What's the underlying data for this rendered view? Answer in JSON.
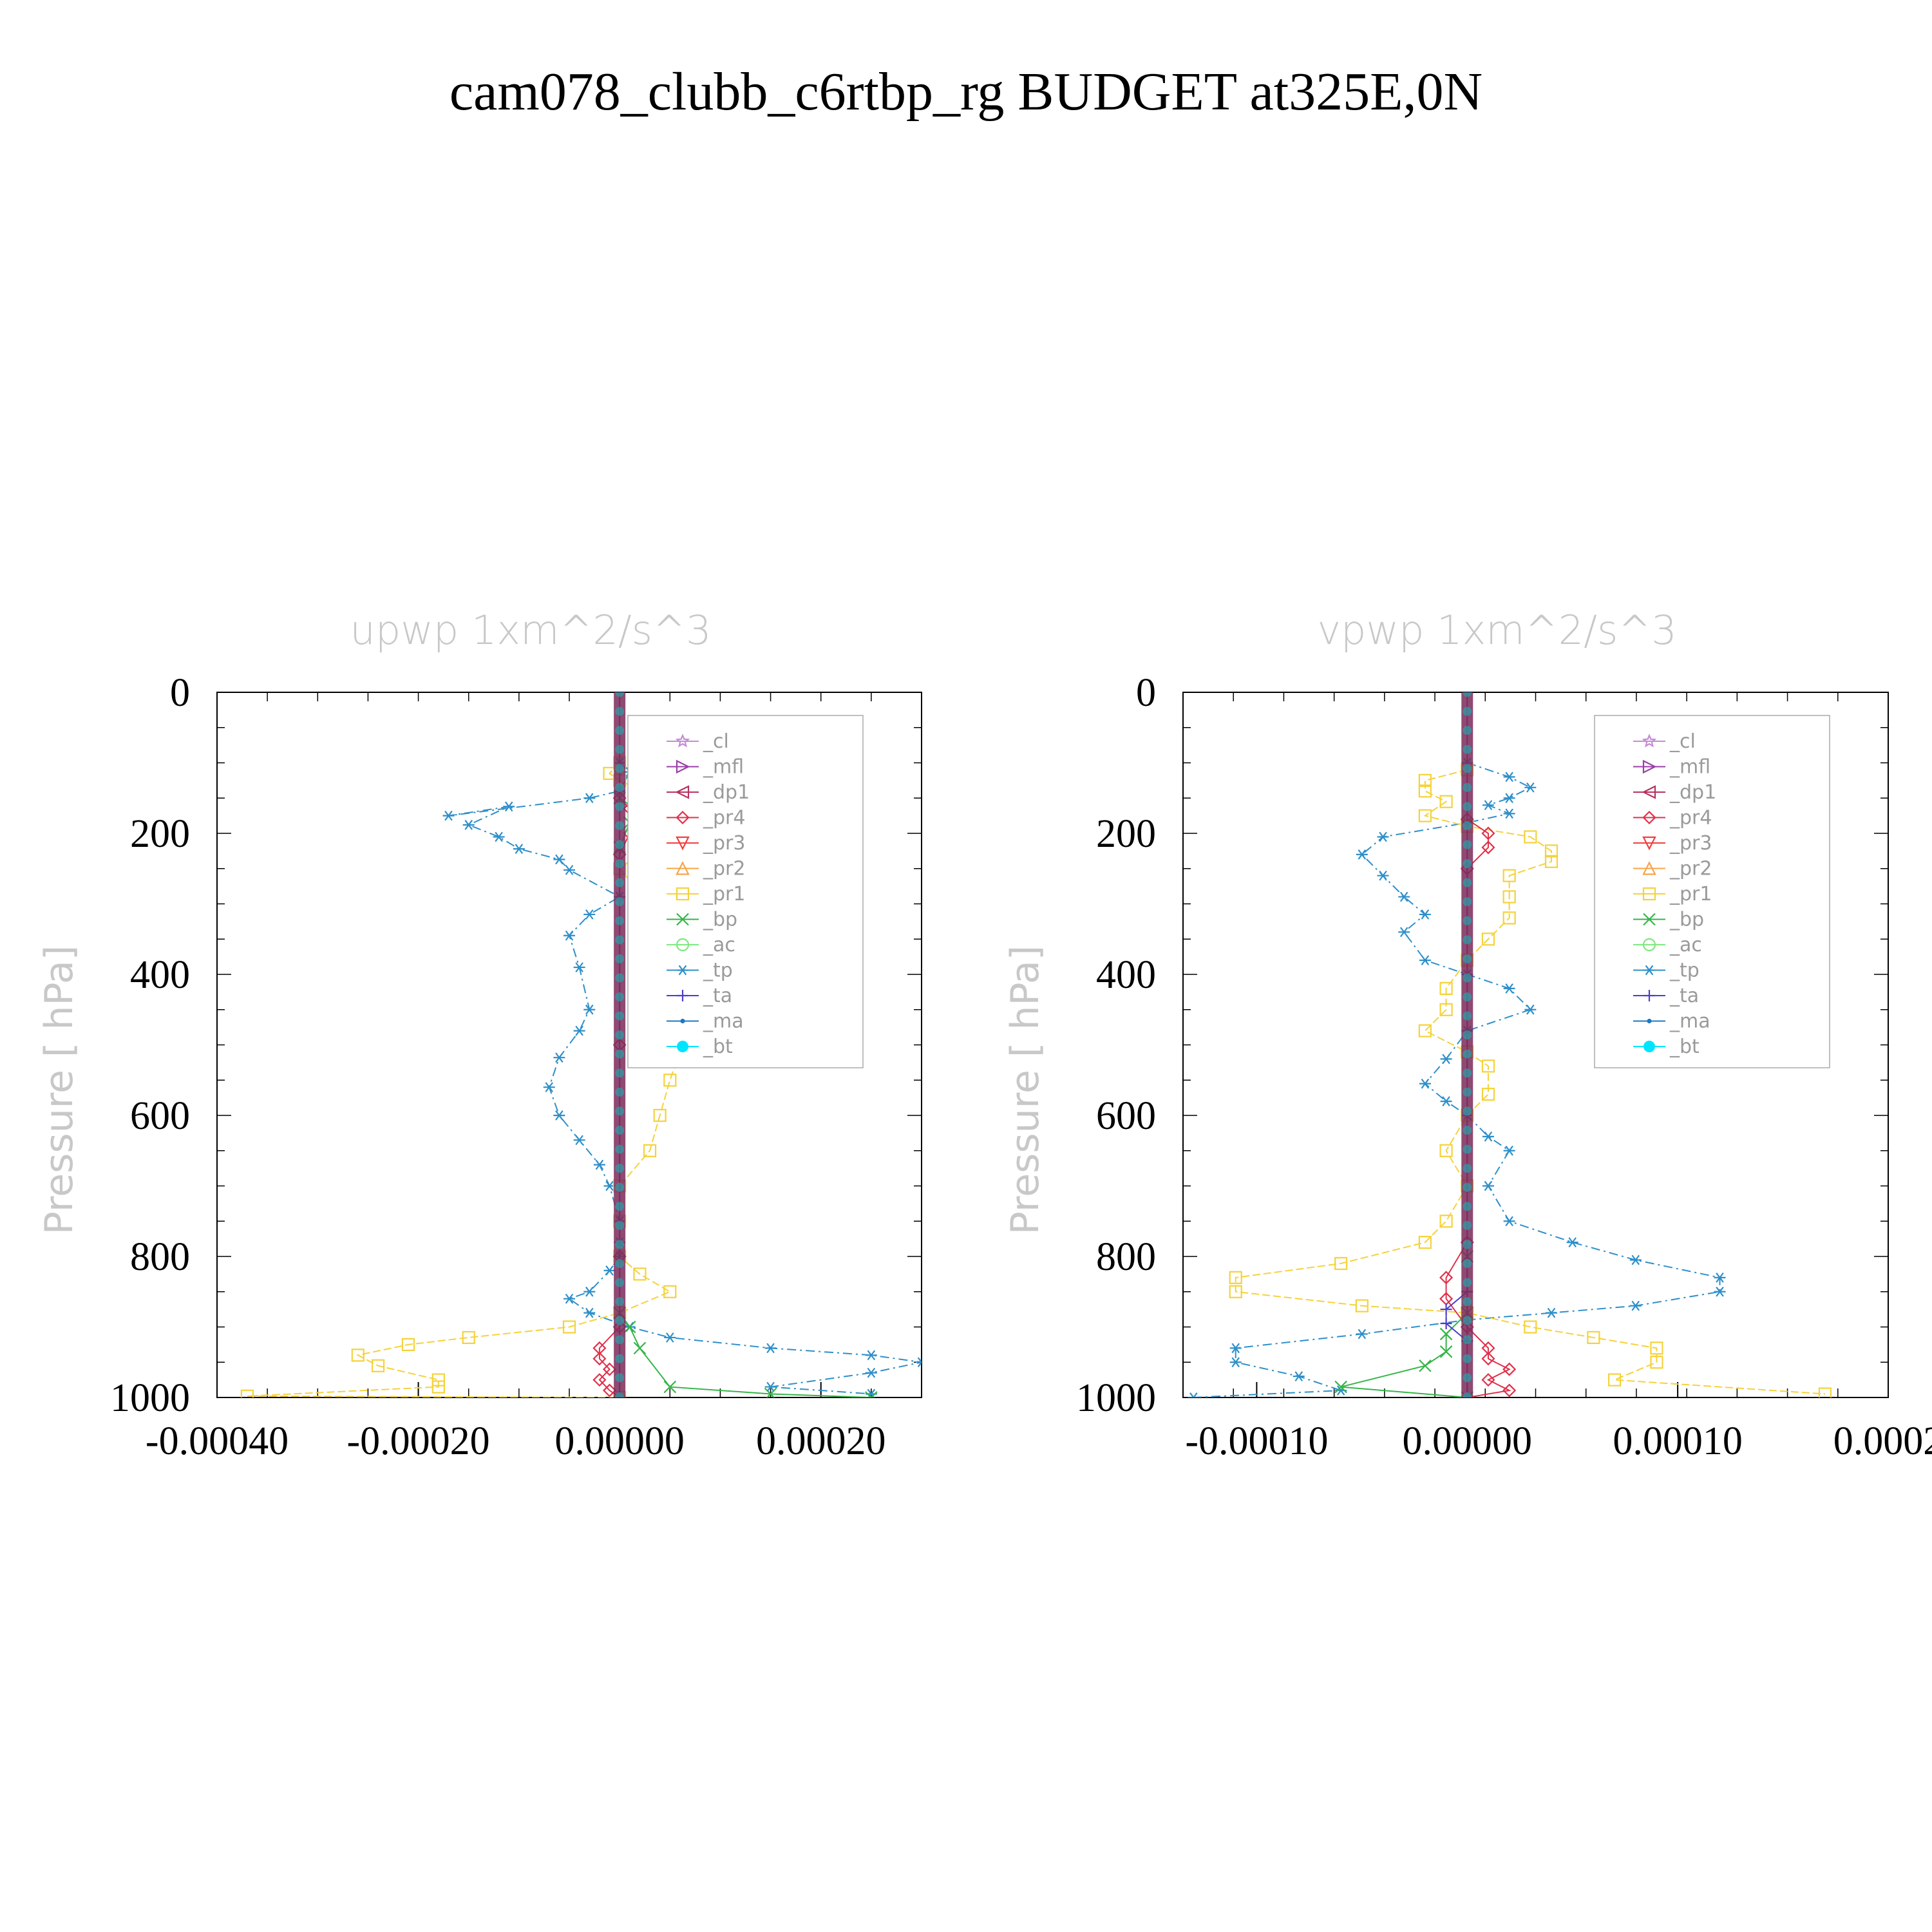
{
  "title": "cam078_clubb_c6rtbp_rg  BUDGET at325E,0N",
  "legend_items": [
    {
      "label": "_cl",
      "color": "#c58bd6",
      "marker": "star"
    },
    {
      "label": "_mfl",
      "color": "#9b3fa8",
      "marker": "tri-right"
    },
    {
      "label": "_dp1",
      "color": "#b8325f",
      "marker": "tri-left"
    },
    {
      "label": "_pr4",
      "color": "#e0304a",
      "marker": "diamond"
    },
    {
      "label": "_pr3",
      "color": "#f04040",
      "marker": "tri-down"
    },
    {
      "label": "_pr2",
      "color": "#f6a548",
      "marker": "tri-up"
    },
    {
      "label": "_pr1",
      "color": "#f5d23a",
      "marker": "square"
    },
    {
      "label": "_bp",
      "color": "#35b548",
      "marker": "x"
    },
    {
      "label": "_ac",
      "color": "#7ee87e",
      "marker": "circle"
    },
    {
      "label": "_tp",
      "color": "#2e8fc9",
      "marker": "asterisk"
    },
    {
      "label": "_ta",
      "color": "#4a3fc8",
      "marker": "plus"
    },
    {
      "label": "_ma",
      "color": "#1d78c0",
      "marker": "dot"
    },
    {
      "label": "_bt",
      "color": "#00e5ff",
      "marker": "filled-circle"
    }
  ],
  "chart_data": [
    {
      "type": "line",
      "title": "upwp   1xm^2/s^3",
      "ylabel": "Pressure  [ hPa]",
      "xlim": [
        -0.0004,
        0.0003
      ],
      "ylim": [
        0,
        1000
      ],
      "y_inverted": true,
      "x_ticks": [
        "-0.00040",
        "-0.00020",
        "0.00000",
        "0.00020"
      ],
      "x_tick_values": [
        -0.0004,
        -0.0002,
        0.0,
        0.0002
      ],
      "y_ticks": [
        "0",
        "200",
        "400",
        "600",
        "800",
        "1000"
      ],
      "y_tick_values": [
        0,
        200,
        400,
        600,
        800,
        1000
      ],
      "series": [
        {
          "name": "_tp",
          "x": [
            0.0,
            1e-05,
            0.0,
            -3e-05,
            -0.00017,
            -0.00011,
            -0.00015,
            -0.00012,
            -0.0001,
            -6e-05,
            -5e-05,
            0.0,
            -3e-05,
            -5e-05,
            -4e-05,
            -3e-05,
            -4e-05,
            -6e-05,
            -7e-05,
            -6e-05,
            -4e-05,
            -2e-05,
            -1e-05,
            0.0,
            0.0,
            0.0,
            -1e-05,
            -3e-05,
            -5e-05,
            -3e-05,
            1e-05,
            5e-05,
            0.00015,
            0.00025,
            0.0003,
            0.00025,
            0.00015,
            0.00025
          ],
          "y": [
            100,
            113,
            140,
            150,
            175,
            162,
            188,
            205,
            222,
            237,
            252,
            290,
            315,
            345,
            390,
            450,
            480,
            518,
            560,
            600,
            635,
            670,
            700,
            750,
            780,
            800,
            820,
            850,
            860,
            880,
            900,
            915,
            930,
            940,
            950,
            965,
            985,
            995
          ]
        },
        {
          "name": "_pr1",
          "x": [
            0.0,
            -1e-05,
            0.0,
            3e-05,
            8e-05,
            0.00012,
            5e-05,
            2e-05,
            0.0,
            3e-05,
            5e-05,
            4e-05,
            3e-05,
            3e-05,
            6e-05,
            5e-05,
            4e-05,
            3e-05,
            0.0,
            0.0,
            0.0,
            2e-05,
            5e-05,
            0.0,
            -5e-05,
            -0.00015,
            -0.00021,
            -0.00026,
            -0.00024,
            -0.00018,
            -0.00018,
            -0.00037,
            0.0
          ],
          "y": [
            100,
            115,
            125,
            145,
            160,
            175,
            205,
            230,
            250,
            300,
            350,
            400,
            450,
            480,
            510,
            550,
            600,
            650,
            700,
            750,
            800,
            825,
            850,
            880,
            900,
            915,
            925,
            940,
            955,
            975,
            985,
            998,
            1000
          ]
        },
        {
          "name": "_pr4",
          "x": [
            0.0,
            1e-05,
            2e-05,
            1e-05,
            0.0,
            0.0,
            0.0,
            0.0,
            -2e-05,
            -2e-05,
            -1e-05,
            -2e-05,
            -1e-05,
            0.0
          ],
          "y": [
            150,
            165,
            180,
            200,
            230,
            500,
            800,
            900,
            930,
            945,
            960,
            975,
            990,
            1000
          ]
        },
        {
          "name": "_bp",
          "x": [
            0.0,
            2e-05,
            1e-05,
            0.0,
            0.0,
            1e-05,
            2e-05,
            5e-05,
            0.00015,
            0.00025
          ],
          "y": [
            150,
            170,
            185,
            220,
            880,
            900,
            930,
            985,
            995,
            1000
          ]
        },
        {
          "name": "_ma",
          "x": [
            0.0,
            0.0
          ],
          "y": [
            0,
            1000
          ]
        },
        {
          "name": "_dp1",
          "x": [
            0.0,
            0.0
          ],
          "y": [
            0,
            1000
          ]
        }
      ]
    },
    {
      "type": "line",
      "title": "vpwp   1xm^2/s^3",
      "ylabel": "Pressure  [ hPa]",
      "xlim": [
        -0.000135,
        0.0002
      ],
      "ylim": [
        0,
        1000
      ],
      "y_inverted": true,
      "x_ticks": [
        "-0.00010",
        "0.00000",
        "0.00010",
        "0.0002"
      ],
      "x_tick_values": [
        -0.0001,
        0.0,
        0.0001,
        0.0002
      ],
      "y_ticks": [
        "0",
        "200",
        "400",
        "600",
        "800",
        "1000"
      ],
      "y_tick_values": [
        0,
        200,
        400,
        600,
        800,
        1000
      ],
      "series": [
        {
          "name": "_tp",
          "x": [
            0.0,
            2e-05,
            3e-05,
            2e-05,
            1e-05,
            2e-05,
            0.0,
            -4e-05,
            -5e-05,
            -4e-05,
            -3e-05,
            -2e-05,
            -3e-05,
            -2e-05,
            0.0,
            2e-05,
            3e-05,
            0.0,
            -1e-05,
            -2e-05,
            -1e-05,
            0.0,
            1e-05,
            2e-05,
            1e-05,
            2e-05,
            5e-05,
            8e-05,
            0.00012,
            0.00012,
            8e-05,
            4e-05,
            0.0,
            -5e-05,
            -0.00011,
            -0.00011,
            -8e-05,
            -6e-05,
            -0.00013
          ],
          "y": [
            100,
            120,
            135,
            150,
            160,
            172,
            185,
            205,
            230,
            260,
            290,
            315,
            340,
            380,
            400,
            420,
            450,
            480,
            520,
            555,
            580,
            600,
            630,
            650,
            700,
            750,
            780,
            805,
            830,
            850,
            870,
            880,
            890,
            910,
            930,
            950,
            970,
            990,
            1000
          ]
        },
        {
          "name": "_pr1",
          "x": [
            0.0,
            -2e-05,
            -2e-05,
            -1e-05,
            -2e-05,
            0.0,
            3e-05,
            4e-05,
            4e-05,
            2e-05,
            2e-05,
            2e-05,
            1e-05,
            0.0,
            -1e-05,
            -1e-05,
            -2e-05,
            0.0,
            1e-05,
            1e-05,
            0.0,
            -1e-05,
            0.0,
            -1e-05,
            -2e-05,
            -6e-05,
            -0.00011,
            -0.00011,
            -5e-05,
            0.0,
            3e-05,
            6e-05,
            9e-05,
            9e-05,
            7e-05,
            0.00017
          ],
          "y": [
            110,
            125,
            140,
            155,
            175,
            190,
            205,
            225,
            240,
            260,
            290,
            320,
            350,
            380,
            420,
            450,
            480,
            510,
            530,
            570,
            600,
            650,
            700,
            750,
            780,
            810,
            830,
            850,
            870,
            880,
            900,
            915,
            930,
            950,
            975,
            995
          ]
        },
        {
          "name": "_pr4",
          "x": [
            0.0,
            1e-05,
            1e-05,
            0.0,
            0.0,
            -1e-05,
            -1e-05,
            0.0,
            1e-05,
            1e-05,
            2e-05,
            1e-05,
            2e-05,
            0.0
          ],
          "y": [
            180,
            200,
            220,
            250,
            780,
            830,
            860,
            900,
            930,
            945,
            960,
            975,
            990,
            1000
          ]
        },
        {
          "name": "_bp",
          "x": [
            0.0,
            0.0,
            -1e-05,
            -1e-05,
            -2e-05,
            -6e-05,
            0.0
          ],
          "y": [
            800,
            880,
            910,
            935,
            955,
            985,
            1000
          ]
        },
        {
          "name": "_ta",
          "x": [
            0.0,
            -1e-05,
            -1e-05,
            0.0
          ],
          "y": [
            850,
            875,
            895,
            920
          ]
        },
        {
          "name": "_ma",
          "x": [
            0.0,
            0.0
          ],
          "y": [
            0,
            1000
          ]
        },
        {
          "name": "_dp1",
          "x": [
            0.0,
            0.0
          ],
          "y": [
            0,
            1000
          ]
        }
      ]
    }
  ]
}
